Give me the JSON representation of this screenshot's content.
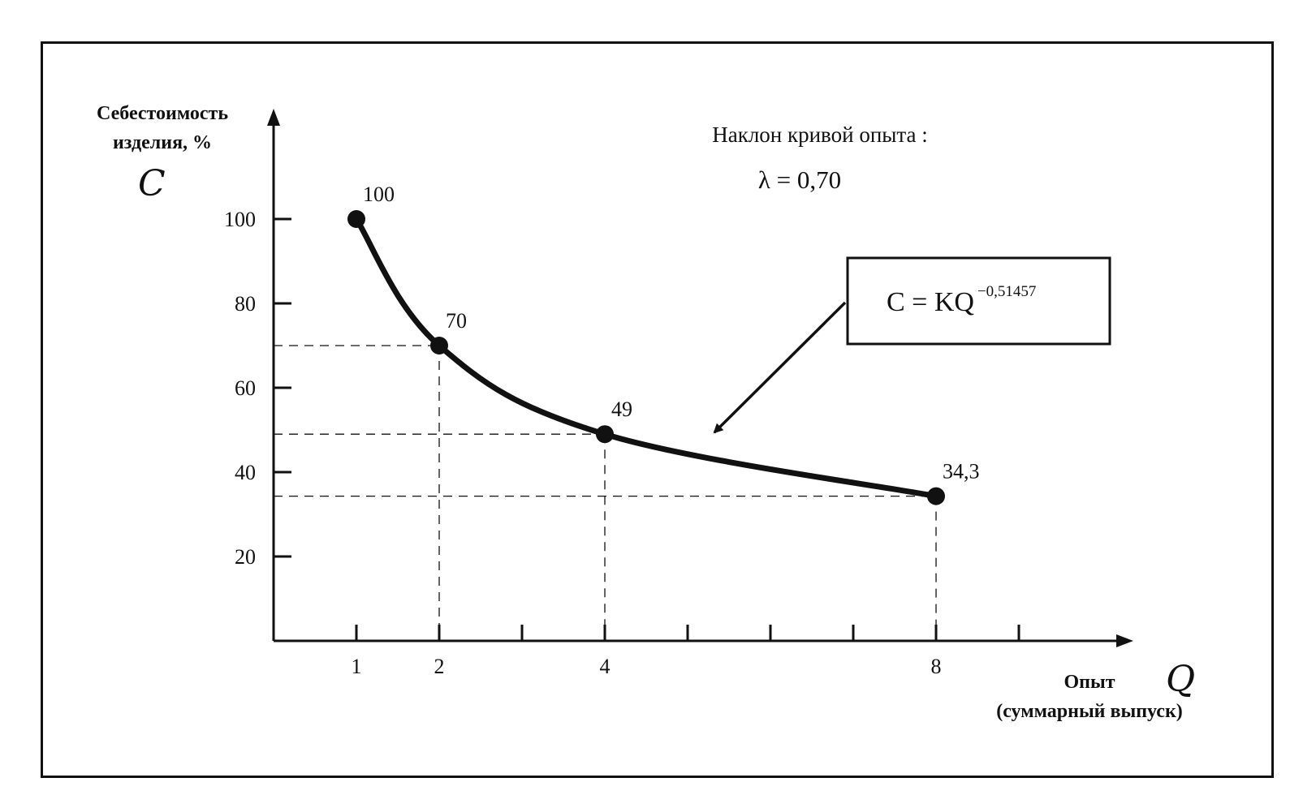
{
  "chart_data": {
    "type": "line",
    "y_title_line1": "Себестоимость",
    "y_title_line2": "изделия, %",
    "y_symbol": "C",
    "x_title_line1": "Опыт",
    "x_title_line2": "(суммарный выпуск)",
    "x_symbol": "Q",
    "y_ticks": [
      20,
      40,
      60,
      80,
      100
    ],
    "y_tick_labels": [
      "20",
      "40",
      "60",
      "80",
      "100"
    ],
    "x_tick_positions": [
      1,
      2,
      3,
      4,
      5,
      6,
      7,
      8,
      9
    ],
    "x_tick_labels": [
      {
        "x": 1,
        "label": "1"
      },
      {
        "x": 2,
        "label": "2"
      },
      {
        "x": 4,
        "label": "4"
      },
      {
        "x": 8,
        "label": "8"
      }
    ],
    "ylim": [
      0,
      120
    ],
    "xlim": [
      0,
      10
    ],
    "points": [
      {
        "x": 1,
        "y": 100,
        "label": "100"
      },
      {
        "x": 2,
        "y": 70,
        "label": "70"
      },
      {
        "x": 4,
        "y": 49,
        "label": "49"
      },
      {
        "x": 8,
        "y": 34.3,
        "label": "34,3"
      }
    ],
    "annotation": {
      "slope_title": "Наклон кривой опыта :",
      "lambda": "λ = 0,70",
      "formula_base": "C = KQ",
      "formula_exponent": "−0,51457"
    }
  }
}
